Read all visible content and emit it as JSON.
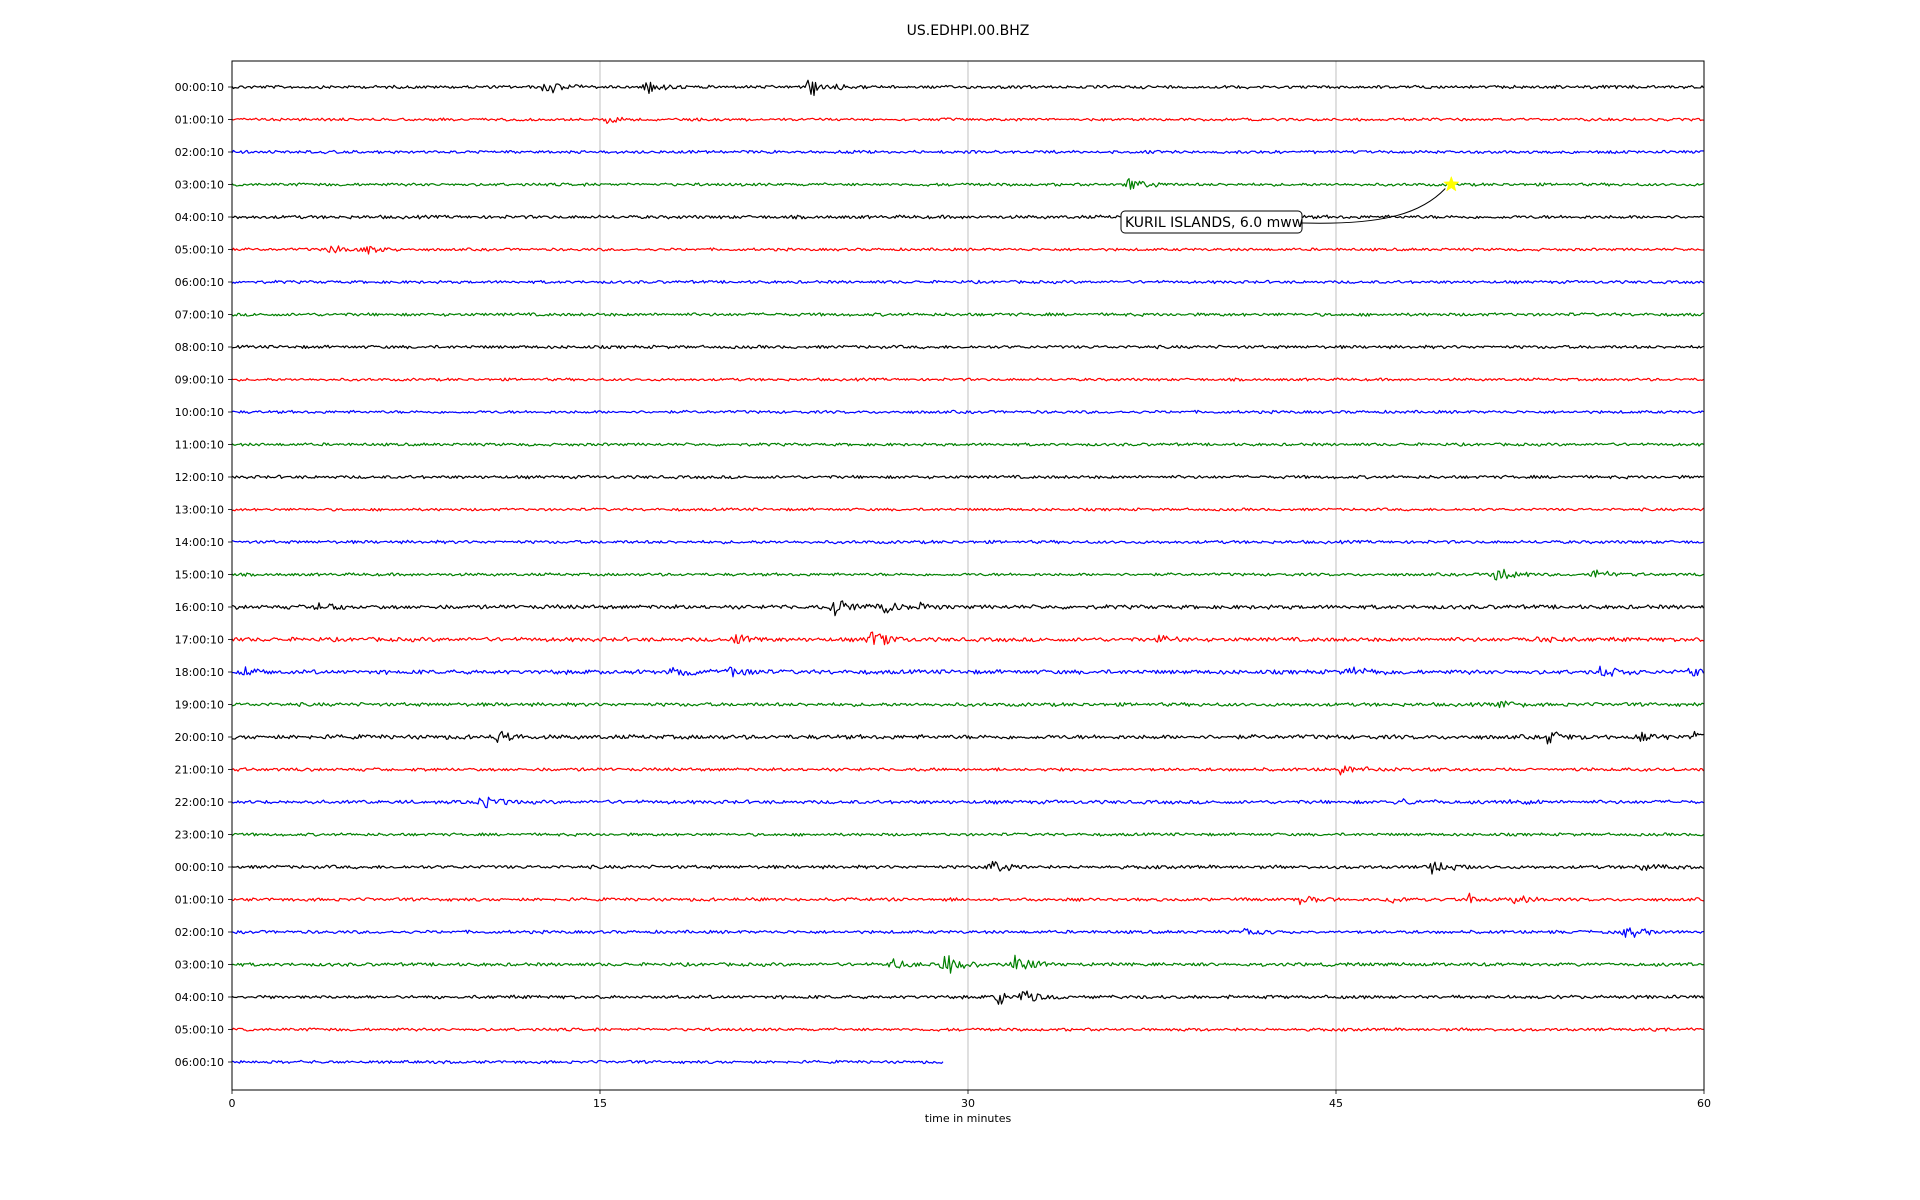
{
  "chart_data": {
    "type": "line",
    "title": "US.EDHPI.00.BHZ",
    "xlabel": "time in minutes",
    "xlim": [
      0,
      60
    ],
    "x_ticks": [
      0,
      15,
      30,
      45,
      60
    ],
    "x_tick_labels": [
      "0",
      "15",
      "30",
      "45",
      "60"
    ],
    "grid": "vertical lines at x ticks",
    "row_labels": [
      "00:00:10",
      "01:00:10",
      "02:00:10",
      "03:00:10",
      "04:00:10",
      "05:00:10",
      "06:00:10",
      "07:00:10",
      "08:00:10",
      "09:00:10",
      "10:00:10",
      "11:00:10",
      "12:00:10",
      "13:00:10",
      "14:00:10",
      "15:00:10",
      "16:00:10",
      "17:00:10",
      "18:00:10",
      "19:00:10",
      "20:00:10",
      "21:00:10",
      "22:00:10",
      "23:00:10",
      "00:00:10",
      "01:00:10",
      "02:00:10",
      "03:00:10",
      "04:00:10",
      "05:00:10",
      "06:00:10"
    ],
    "trace_colors": [
      "#000000",
      "#ff0000",
      "#0000ff",
      "#008000"
    ],
    "trace_end_minutes": [
      60,
      60,
      60,
      60,
      60,
      60,
      60,
      60,
      60,
      60,
      60,
      60,
      60,
      60,
      60,
      60,
      60,
      60,
      60,
      60,
      60,
      60,
      60,
      60,
      60,
      60,
      60,
      60,
      60,
      60,
      29
    ],
    "trace_noise": [
      1.4,
      1.2,
      1.3,
      1.3,
      1.5,
      1.2,
      1.3,
      1.4,
      1.4,
      1.2,
      1.3,
      1.3,
      1.4,
      1.2,
      1.4,
      1.3,
      1.8,
      1.8,
      1.9,
      1.6,
      1.9,
      1.4,
      1.6,
      1.3,
      1.5,
      1.4,
      1.4,
      1.5,
      1.5,
      1.3,
      1.3
    ],
    "events": [
      {
        "row": 0,
        "minute": 12.7,
        "amp": 9
      },
      {
        "row": 0,
        "minute": 16.9,
        "amp": 7
      },
      {
        "row": 0,
        "minute": 23.5,
        "amp": 14
      },
      {
        "row": 1,
        "minute": 15.3,
        "amp": 4
      },
      {
        "row": 3,
        "minute": 36.5,
        "amp": 8
      },
      {
        "row": 5,
        "minute": 4.0,
        "amp": 7
      },
      {
        "row": 5,
        "minute": 5.5,
        "amp": 5
      },
      {
        "row": 15,
        "minute": 51.5,
        "amp": 16
      },
      {
        "row": 15,
        "minute": 55.5,
        "amp": 6
      },
      {
        "row": 16,
        "minute": 3.5,
        "amp": 6
      },
      {
        "row": 16,
        "minute": 24.5,
        "amp": 12
      },
      {
        "row": 16,
        "minute": 26.5,
        "amp": 10
      },
      {
        "row": 16,
        "minute": 28.0,
        "amp": 5
      },
      {
        "row": 17,
        "minute": 20.5,
        "amp": 6
      },
      {
        "row": 17,
        "minute": 26.0,
        "amp": 11
      },
      {
        "row": 17,
        "minute": 37.8,
        "amp": 5
      },
      {
        "row": 17,
        "minute": 53.0,
        "amp": 5
      },
      {
        "row": 18,
        "minute": 0.5,
        "amp": 6
      },
      {
        "row": 18,
        "minute": 17.9,
        "amp": 7
      },
      {
        "row": 18,
        "minute": 20.3,
        "amp": 6
      },
      {
        "row": 18,
        "minute": 45.6,
        "amp": 6
      },
      {
        "row": 18,
        "minute": 55.8,
        "amp": 9
      },
      {
        "row": 18,
        "minute": 59.4,
        "amp": 7
      },
      {
        "row": 19,
        "minute": 51.6,
        "amp": 6
      },
      {
        "row": 20,
        "minute": 10.8,
        "amp": 6
      },
      {
        "row": 20,
        "minute": 53.6,
        "amp": 7
      },
      {
        "row": 20,
        "minute": 57.4,
        "amp": 6
      },
      {
        "row": 20,
        "minute": 59.6,
        "amp": 6
      },
      {
        "row": 21,
        "minute": 45.2,
        "amp": 7
      },
      {
        "row": 22,
        "minute": 10.2,
        "amp": 8
      },
      {
        "row": 22,
        "minute": 47.5,
        "amp": 5
      },
      {
        "row": 22,
        "minute": 52.0,
        "amp": 5
      },
      {
        "row": 24,
        "minute": 30.9,
        "amp": 8
      },
      {
        "row": 24,
        "minute": 48.9,
        "amp": 7
      },
      {
        "row": 24,
        "minute": 57.4,
        "amp": 5
      },
      {
        "row": 25,
        "minute": 43.5,
        "amp": 7
      },
      {
        "row": 25,
        "minute": 47.2,
        "amp": 6
      },
      {
        "row": 25,
        "minute": 50.4,
        "amp": 6
      },
      {
        "row": 25,
        "minute": 52.3,
        "amp": 8
      },
      {
        "row": 26,
        "minute": 41.3,
        "amp": 4
      },
      {
        "row": 26,
        "minute": 56.8,
        "amp": 8
      },
      {
        "row": 27,
        "minute": 26.8,
        "amp": 6
      },
      {
        "row": 27,
        "minute": 29.0,
        "amp": 13
      },
      {
        "row": 27,
        "minute": 31.9,
        "amp": 14
      },
      {
        "row": 28,
        "minute": 31.2,
        "amp": 8
      },
      {
        "row": 28,
        "minute": 32.3,
        "amp": 11
      }
    ],
    "annotation": {
      "text": "KURIL ISLANDS, 6.0 mww",
      "row": 3,
      "minute": 49.7,
      "marker": "star",
      "marker_color": "#ffff00"
    }
  }
}
